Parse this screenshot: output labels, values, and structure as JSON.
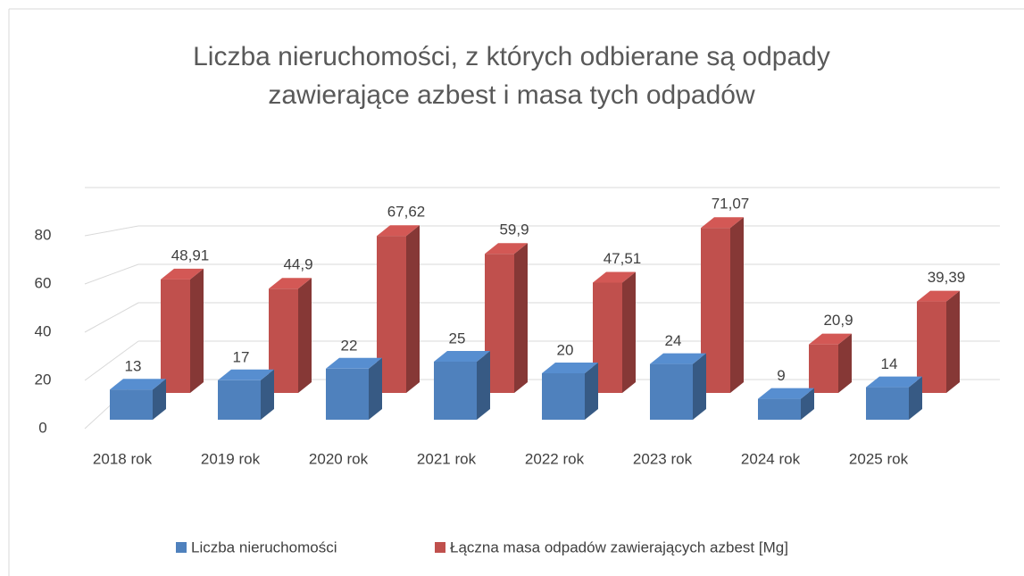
{
  "chart_data": {
    "type": "bar3d",
    "title": "Liczba nieruchomości, z których odbierane są odpady zawierające azbest i masa tych odpadów",
    "categories": [
      "2018 rok",
      "2019 rok",
      "2020 rok",
      "2021 rok",
      "2022 rok",
      "2023 rok",
      "2024 rok",
      "2025 rok"
    ],
    "series": [
      {
        "name": "Liczba nieruchomości",
        "color": "#4f81bd",
        "values": [
          13,
          17,
          22,
          25,
          20,
          24,
          9,
          14
        ]
      },
      {
        "name": "Łączna masa odpadów zawierających azbest [Mg]",
        "color": "#c0504d",
        "values": [
          48.91,
          44.9,
          67.62,
          59.9,
          47.51,
          71.07,
          20.9,
          39.39
        ],
        "value_labels": [
          "48,91",
          "44,9",
          "67,62",
          "59,9",
          "47,51",
          "71,07",
          "20,9",
          "39,39"
        ]
      }
    ],
    "ylim": [
      0,
      100
    ],
    "yticks": [
      0,
      20,
      40,
      60,
      80
    ],
    "grid": true,
    "legend": "bottom"
  }
}
